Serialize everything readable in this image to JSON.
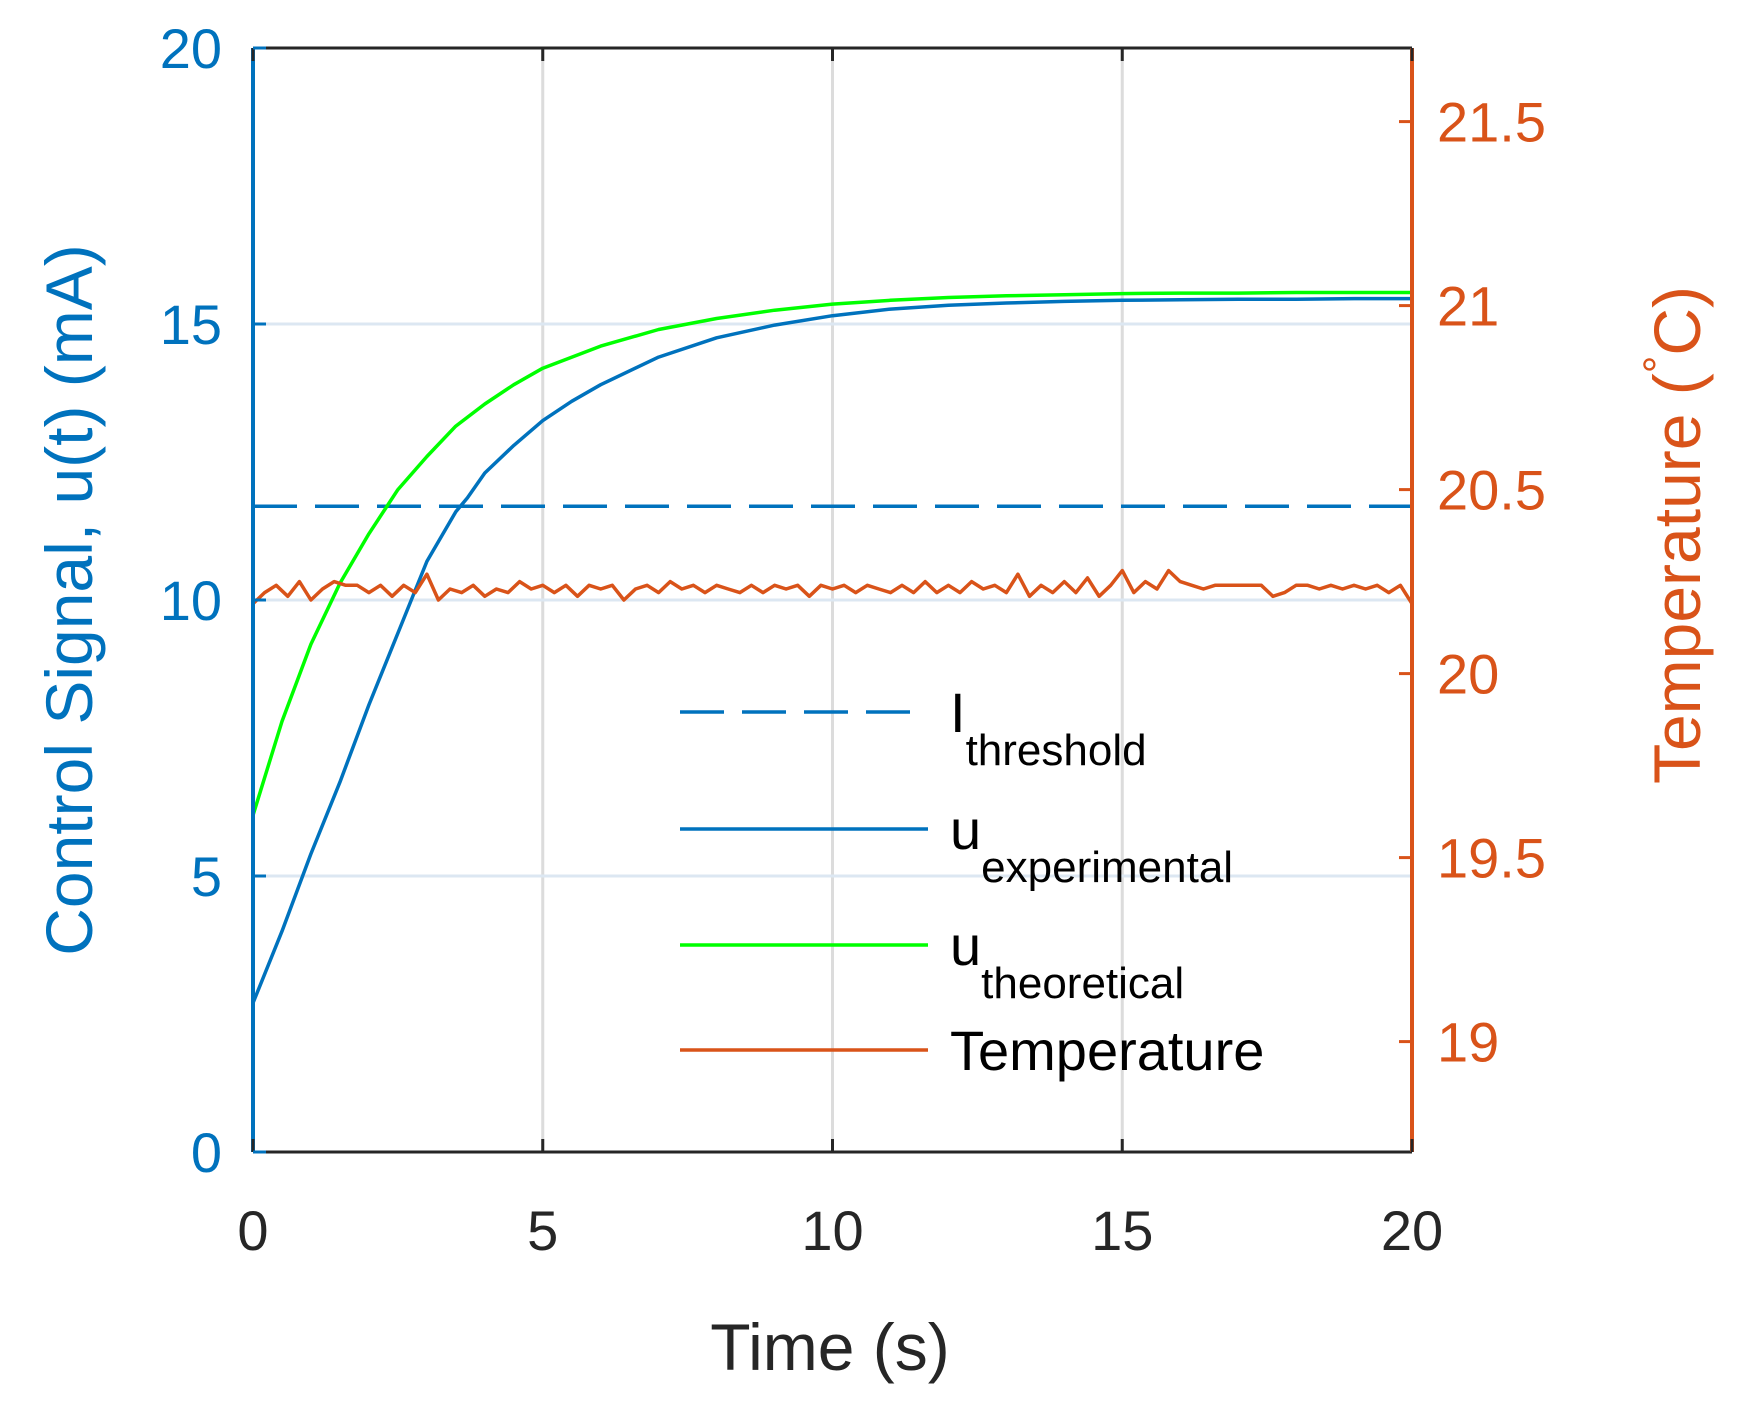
{
  "chart_data": {
    "type": "line",
    "title": "",
    "xlabel": "Time (s)",
    "ylabel_left": "Control Signal, u(t) (mA)",
    "ylabel_right": "Temperature (°C)",
    "ylabel_right_main": "Temperature (",
    "ylabel_right_degree": "°",
    "ylabel_right_unit": "C)",
    "xlim": [
      0,
      20
    ],
    "ylim_left": [
      0,
      20
    ],
    "ylim_right": [
      18.7,
      21.7
    ],
    "xticks": [
      "0",
      "5",
      "10",
      "15",
      "20"
    ],
    "yticks_left": [
      "0",
      "5",
      "10",
      "15",
      "20"
    ],
    "yticks_right": [
      "19",
      "19.5",
      "20",
      "20.5",
      "21",
      "21.5"
    ],
    "grid": true,
    "legend_position": "bottom-right",
    "legend": [
      {
        "base": "I",
        "sub": "threshold",
        "style": "dashed",
        "color": "#0072BD"
      },
      {
        "base": "u",
        "sub": "experimental",
        "style": "solid",
        "color": "#0072BD"
      },
      {
        "base": "u",
        "sub": "theoretical",
        "style": "solid",
        "color": "#00FF00"
      },
      {
        "base": "Temperature",
        "sub": "",
        "style": "solid",
        "color": "#D95319"
      }
    ],
    "series": [
      {
        "name": "I_threshold",
        "axis": "left",
        "color": "#0072BD",
        "style": "dashed",
        "x": [
          0,
          20
        ],
        "y": [
          11.7,
          11.7
        ]
      },
      {
        "name": "u_experimental",
        "axis": "left",
        "color": "#0072BD",
        "style": "solid",
        "x": [
          0,
          0.5,
          1,
          1.5,
          2,
          2.5,
          3,
          3.5,
          3.7,
          4,
          4.5,
          5,
          5.5,
          6,
          7,
          8,
          9,
          10,
          11,
          12,
          13,
          14,
          15,
          16,
          17,
          18,
          19,
          20
        ],
        "y": [
          2.7,
          4.0,
          5.4,
          6.7,
          8.1,
          9.4,
          10.7,
          11.6,
          11.85,
          12.3,
          12.8,
          13.25,
          13.6,
          13.9,
          14.4,
          14.75,
          14.98,
          15.15,
          15.27,
          15.34,
          15.38,
          15.41,
          15.43,
          15.44,
          15.45,
          15.45,
          15.46,
          15.46
        ]
      },
      {
        "name": "u_theoretical",
        "axis": "left",
        "color": "#00FF00",
        "style": "solid",
        "x": [
          0,
          0.5,
          1,
          1.5,
          2,
          2.5,
          3,
          3.5,
          4,
          4.5,
          5,
          6,
          7,
          8,
          9,
          10,
          11,
          12,
          13,
          14,
          15,
          16,
          17,
          18,
          19,
          20
        ],
        "y": [
          6.1,
          7.8,
          9.2,
          10.3,
          11.2,
          12.0,
          12.6,
          13.15,
          13.55,
          13.9,
          14.2,
          14.6,
          14.9,
          15.1,
          15.25,
          15.36,
          15.43,
          15.48,
          15.51,
          15.53,
          15.55,
          15.56,
          15.56,
          15.57,
          15.57,
          15.57
        ]
      },
      {
        "name": "Temperature",
        "axis": "right",
        "color": "#D95319",
        "style": "solid",
        "x": [
          0,
          0.2,
          0.4,
          0.6,
          0.8,
          1.0,
          1.2,
          1.4,
          1.6,
          1.8,
          2.0,
          2.2,
          2.4,
          2.6,
          2.8,
          3.0,
          3.2,
          3.4,
          3.6,
          3.8,
          4.0,
          4.2,
          4.4,
          4.6,
          4.8,
          5.0,
          5.2,
          5.4,
          5.6,
          5.8,
          6.0,
          6.2,
          6.4,
          6.6,
          6.8,
          7.0,
          7.2,
          7.4,
          7.6,
          7.8,
          8.0,
          8.2,
          8.4,
          8.6,
          8.8,
          9.0,
          9.2,
          9.4,
          9.6,
          9.8,
          10.0,
          10.2,
          10.4,
          10.6,
          10.8,
          11.0,
          11.2,
          11.4,
          11.6,
          11.8,
          12.0,
          12.2,
          12.4,
          12.6,
          12.8,
          13.0,
          13.2,
          13.4,
          13.6,
          13.8,
          14.0,
          14.2,
          14.4,
          14.6,
          14.8,
          15.0,
          15.2,
          15.4,
          15.6,
          15.8,
          16.0,
          16.2,
          16.4,
          16.6,
          16.8,
          17.0,
          17.2,
          17.4,
          17.6,
          17.8,
          18.0,
          18.2,
          18.4,
          18.6,
          18.8,
          19.0,
          19.2,
          19.4,
          19.6,
          19.8,
          20.0
        ],
        "y": [
          20.19,
          20.22,
          20.24,
          20.21,
          20.25,
          20.2,
          20.23,
          20.25,
          20.24,
          20.24,
          20.22,
          20.24,
          20.21,
          20.24,
          20.22,
          20.27,
          20.2,
          20.23,
          20.22,
          20.24,
          20.21,
          20.23,
          20.22,
          20.25,
          20.23,
          20.24,
          20.22,
          20.24,
          20.21,
          20.24,
          20.23,
          20.24,
          20.2,
          20.23,
          20.24,
          20.22,
          20.25,
          20.23,
          20.24,
          20.22,
          20.24,
          20.23,
          20.22,
          20.24,
          20.22,
          20.24,
          20.23,
          20.24,
          20.21,
          20.24,
          20.23,
          20.24,
          20.22,
          20.24,
          20.23,
          20.22,
          20.24,
          20.22,
          20.25,
          20.22,
          20.24,
          20.22,
          20.25,
          20.23,
          20.24,
          20.22,
          20.27,
          20.21,
          20.24,
          20.22,
          20.25,
          20.22,
          20.26,
          20.21,
          20.24,
          20.28,
          20.22,
          20.25,
          20.23,
          20.28,
          20.25,
          20.24,
          20.23,
          20.24,
          20.24,
          20.24,
          20.24,
          20.24,
          20.21,
          20.22,
          20.24,
          20.24,
          20.23,
          20.24,
          20.23,
          20.24,
          20.23,
          20.24,
          20.22,
          20.24,
          20.19
        ]
      }
    ]
  }
}
